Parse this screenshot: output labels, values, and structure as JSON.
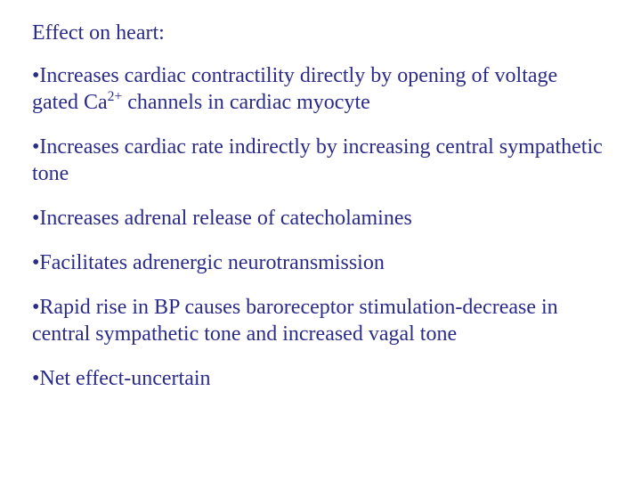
{
  "text_color": "#2b2b8a",
  "heading": "Effect on heart:",
  "bullets": [
    {
      "pre": "Increases cardiac contractility directly by opening of voltage gated Ca",
      "sup": "2+",
      "post": " channels in cardiac myocyte"
    },
    {
      "pre": "Increases cardiac rate indirectly by increasing central sympathetic tone",
      "sup": "",
      "post": ""
    },
    {
      "pre": "Increases adrenal release of catecholamines",
      "sup": "",
      "post": ""
    },
    {
      "pre": "Facilitates adrenergic neurotransmission",
      "sup": "",
      "post": ""
    },
    {
      "pre": "Rapid rise in BP causes baroreceptor stimulation-decrease in central sympathetic tone and increased vagal tone",
      "sup": "",
      "post": ""
    },
    {
      "pre": "Net effect-uncertain",
      "sup": "",
      "post": ""
    }
  ],
  "bullet_char": "•"
}
